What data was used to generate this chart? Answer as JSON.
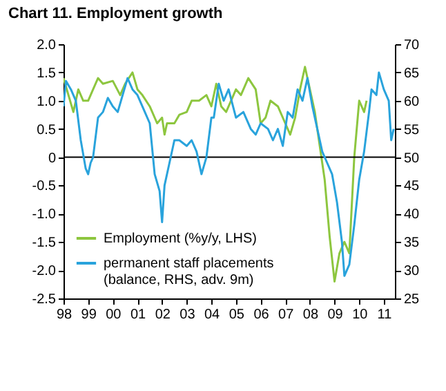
{
  "chart_data": {
    "type": "line",
    "title": "Chart 11. Employment growth",
    "xlim": [
      1998,
      2011.45
    ],
    "xticks": [
      {
        "value": 1998,
        "label": "98"
      },
      {
        "value": 1999,
        "label": "99"
      },
      {
        "value": 2000,
        "label": "00"
      },
      {
        "value": 2001,
        "label": "01"
      },
      {
        "value": 2002,
        "label": "02"
      },
      {
        "value": 2003,
        "label": "03"
      },
      {
        "value": 2004,
        "label": "04"
      },
      {
        "value": 2005,
        "label": "05"
      },
      {
        "value": 2006,
        "label": "06"
      },
      {
        "value": 2007,
        "label": "07"
      },
      {
        "value": 2008,
        "label": "08"
      },
      {
        "value": 2009,
        "label": "09"
      },
      {
        "value": 2010,
        "label": "10"
      },
      {
        "value": 2011,
        "label": "11"
      }
    ],
    "ylim": [
      -2.5,
      2.0
    ],
    "yticks": [
      {
        "value": -2.5,
        "label": "-2.5"
      },
      {
        "value": -2,
        "label": "-2.0"
      },
      {
        "value": -1.5,
        "label": "-1.5"
      },
      {
        "value": -1,
        "label": "-1.0"
      },
      {
        "value": -0.5,
        "label": "-0.5"
      },
      0,
      {
        "value": 0.5,
        "label": "0.5"
      },
      {
        "value": 1,
        "label": "1.0"
      },
      {
        "value": 1.5,
        "label": "1.5"
      },
      {
        "value": 2,
        "label": "2.0"
      }
    ],
    "y2lim": [
      25,
      70
    ],
    "y2ticks": [
      25,
      30,
      35,
      40,
      45,
      50,
      55,
      60,
      65,
      70
    ],
    "ref_lines": [
      {
        "axis": "y",
        "value": 0,
        "color": "#000000"
      }
    ],
    "legend": "bottom left",
    "series": [
      {
        "name": "Employment (%y/y, LHS)",
        "color": "#8dc63f",
        "x": [
          1998,
          1998.2,
          1998.4,
          1998.6,
          1998.8,
          1999,
          1999.2,
          1999.4,
          1999.6,
          2000,
          2000.3,
          2000.5,
          2000.8,
          2001,
          2001.2,
          2001.5,
          2001.8,
          2002,
          2002.1,
          2002.2,
          2002.5,
          2002.7,
          2003,
          2003.2,
          2003.5,
          2003.8,
          2004,
          2004.2,
          2004.4,
          2004.6,
          2005,
          2005.2,
          2005.5,
          2005.8,
          2006,
          2006.2,
          2006.4,
          2006.7,
          2007,
          2007.2,
          2007.4,
          2007.6,
          2007.8,
          2008,
          2008.2,
          2008.4,
          2008.6,
          2008.8,
          2009,
          2009.2,
          2009.4,
          2009.6,
          2009.8,
          2010,
          2010.2,
          2010.3
        ],
        "values": [
          1.4,
          1.1,
          0.8,
          1.2,
          1.0,
          1.0,
          1.2,
          1.4,
          1.3,
          1.35,
          1.1,
          1.3,
          1.5,
          1.2,
          1.1,
          0.9,
          0.6,
          0.7,
          0.4,
          0.6,
          0.6,
          0.75,
          0.8,
          1.0,
          1.0,
          1.1,
          0.9,
          1.3,
          0.9,
          0.8,
          1.2,
          1.1,
          1.4,
          1.2,
          0.6,
          0.7,
          1.0,
          0.9,
          0.6,
          0.4,
          0.7,
          1.2,
          1.6,
          1.2,
          0.8,
          0.2,
          -0.4,
          -1.4,
          -2.2,
          -1.7,
          -1.5,
          -1.7,
          0,
          1.0,
          0.8,
          1.0
        ]
      },
      {
        "name": "permanent staff placements (balance, RHS, adv. 9m)",
        "color": "#29a3dc",
        "axis": "y2",
        "x": [
          1998,
          1998.1,
          1998.3,
          1998.5,
          1998.7,
          1998.9,
          1999,
          1999.1,
          1999.2,
          1999.4,
          1999.6,
          1999.8,
          2000,
          2000.2,
          2000.4,
          2000.6,
          2000.8,
          2001,
          2001.3,
          2001.5,
          2001.7,
          2001.9,
          2002,
          2002.1,
          2002.3,
          2002.5,
          2002.7,
          2003,
          2003.2,
          2003.4,
          2003.6,
          2003.8,
          2004,
          2004.1,
          2004.3,
          2004.5,
          2004.7,
          2005,
          2005.3,
          2005.6,
          2005.8,
          2006,
          2006.3,
          2006.5,
          2006.7,
          2006.9,
          2007.1,
          2007.3,
          2007.5,
          2007.7,
          2007.9,
          2008.1,
          2008.3,
          2008.5,
          2008.7,
          2008.9,
          2009.1,
          2009.3,
          2009.4,
          2009.6,
          2009.8,
          2010,
          2010.2,
          2010.4,
          2010.5,
          2010.7,
          2010.8,
          2011,
          2011.2,
          2011.3,
          2011.4
        ],
        "values": [
          59,
          63.5,
          62,
          60,
          53,
          48,
          47,
          49,
          50,
          57,
          58,
          60.5,
          59,
          58,
          61,
          64,
          62,
          61,
          58,
          56,
          47,
          44,
          38.5,
          45,
          49,
          53,
          53,
          52,
          53,
          51,
          47,
          50,
          57,
          57,
          63,
          60,
          62,
          57,
          58,
          55,
          54,
          56,
          55,
          53,
          55,
          52,
          58,
          57,
          62,
          60,
          64,
          59,
          55,
          51,
          49,
          47,
          42,
          35,
          29,
          31,
          38,
          46,
          51,
          58,
          62,
          61,
          65,
          62,
          60,
          53,
          55
        ]
      }
    ]
  }
}
